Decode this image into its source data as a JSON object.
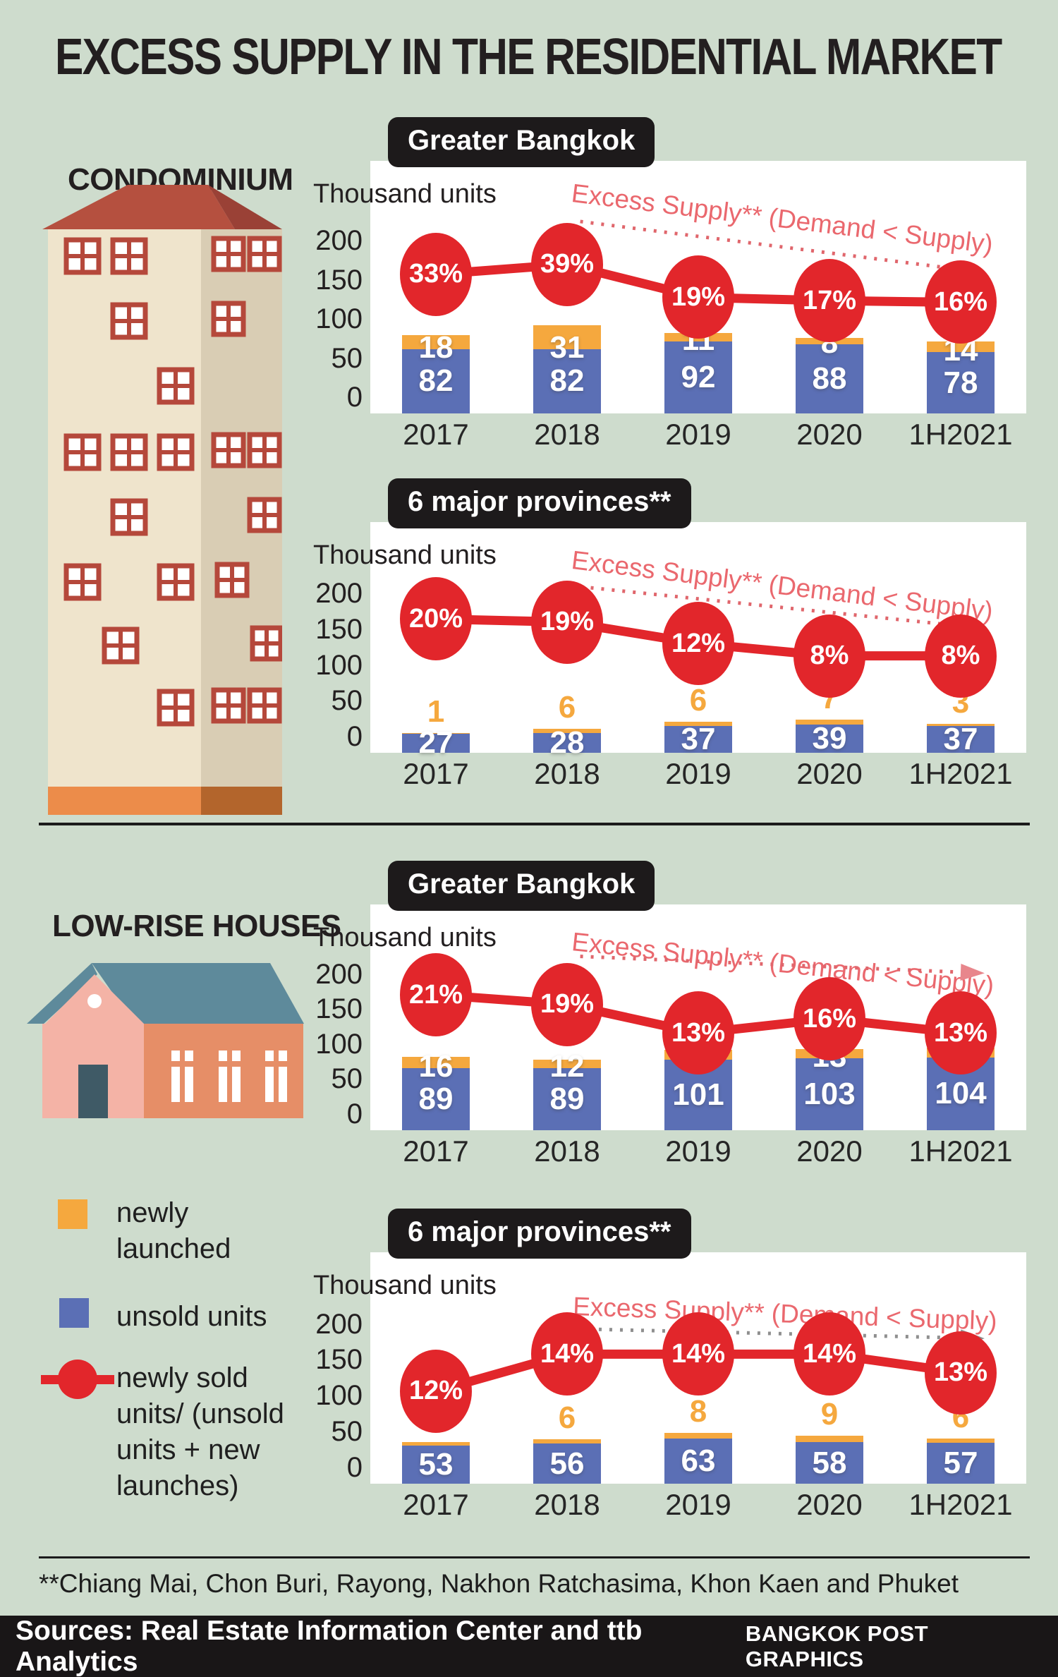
{
  "title": "EXCESS SUPPLY IN THE RESIDENTIAL MARKET",
  "colors": {
    "background": "#cedccd",
    "blue": "#5b6fb5",
    "orange": "#f5a83e",
    "red": "#e2262b",
    "pink_line": "#e0666c",
    "pink_arrowhead": "#e8868c",
    "pink_text": "#ea686e",
    "gray_line": "#8f8f8f",
    "badge_black": "#1d1a1b",
    "text_black": "#231f20"
  },
  "sections": {
    "condo_heading": "CONDOMINIUM",
    "lowrise_heading": "LOW-RISE HOUSES"
  },
  "legend": {
    "newly_launched": "newly launched",
    "unsold_units": "unsold units",
    "newly_sold": "newly sold units/ (unsold units + new launches)"
  },
  "footnote": "**Chiang Mai, Chon Buri, Rayong, Nakhon Ratchasima, Khon Kaen and Phuket",
  "footer": {
    "sources": "Sources: Real Estate Information Center and ttb Analytics",
    "credit": "BANGKOK POST GRAPHICS"
  },
  "chart_data": [
    {
      "type": "bar+line",
      "section": "CONDOMINIUM",
      "region_label": "Greater Bangkok",
      "axis_title": "Thousand units",
      "annotation": "Excess Supply** (Demand < Supply)",
      "categories": [
        "2017",
        "2018",
        "2019",
        "2020",
        "1H2021"
      ],
      "series": [
        {
          "name": "unsold units",
          "color": "blue",
          "values": [
            82,
            82,
            92,
            88,
            78
          ]
        },
        {
          "name": "newly launched",
          "color": "orange",
          "values": [
            18,
            31,
            11,
            8,
            14
          ]
        }
      ],
      "line": {
        "name": "newly sold units/(unsold units + new launches)",
        "unit": "%",
        "values": [
          33,
          39,
          19,
          17,
          16
        ]
      },
      "ylim": [
        0,
        200
      ],
      "yticks": [
        200,
        150,
        100,
        50,
        0
      ],
      "layout": {
        "orange_label": "inside",
        "line_band": [
          0.41,
          0.56
        ],
        "dotted": [
          0.32,
          0.24,
          0.9,
          0.43
        ],
        "annot_left": 0.31,
        "annot_top": 0.07,
        "annot_rotate": 7,
        "arrow": "pink"
      }
    },
    {
      "type": "bar+line",
      "section": "CONDOMINIUM",
      "region_label": "6 major provinces**",
      "axis_title": "Thousand units",
      "annotation": "Excess Supply** (Demand < Supply)",
      "categories": [
        "2017",
        "2018",
        "2019",
        "2020",
        "1H2021"
      ],
      "series": [
        {
          "name": "unsold units",
          "color": "blue",
          "values": [
            27,
            28,
            37,
            39,
            37
          ]
        },
        {
          "name": "newly launched",
          "color": "orange",
          "values": [
            1,
            6,
            6,
            7,
            3
          ]
        }
      ],
      "line": {
        "name": "newly sold units/(unsold units + new launches)",
        "unit": "%",
        "values": [
          20,
          19,
          12,
          8,
          8
        ]
      },
      "ylim": [
        0,
        200
      ],
      "yticks": [
        200,
        150,
        100,
        50,
        0
      ],
      "layout": {
        "orange_label": "above",
        "line_band": [
          0.42,
          0.58
        ],
        "dotted": [
          0.32,
          0.28,
          0.9,
          0.45
        ],
        "annot_left": 0.31,
        "annot_top": 0.1,
        "annot_rotate": 7,
        "arrow": "pink"
      }
    },
    {
      "type": "bar+line",
      "section": "LOW-RISE HOUSES",
      "region_label": "Greater Bangkok",
      "axis_title": "Thousand units",
      "annotation": "Excess Supply** (Demand < Supply)",
      "categories": [
        "2017",
        "2018",
        "2019",
        "2020",
        "1H2021"
      ],
      "series": [
        {
          "name": "unsold units",
          "color": "blue",
          "values": [
            89,
            89,
            101,
            103,
            104
          ]
        },
        {
          "name": "newly launched",
          "color": "orange",
          "values": [
            16,
            12,
            14,
            13,
            14
          ]
        }
      ],
      "line": {
        "name": "newly sold units/(unsold units + new launches)",
        "unit": "%",
        "values": [
          21,
          19,
          13,
          16,
          13
        ]
      },
      "ylim": [
        0,
        200
      ],
      "yticks": [
        200,
        150,
        100,
        50,
        0
      ],
      "layout": {
        "orange_label": "inside",
        "line_band": [
          0.4,
          0.57
        ],
        "dotted": [
          0.32,
          0.23,
          0.9,
          0.3
        ],
        "annot_left": 0.31,
        "annot_top": 0.1,
        "annot_rotate": 6,
        "arrow": "pink"
      }
    },
    {
      "type": "bar+line",
      "section": "LOW-RISE HOUSES",
      "region_label": "6 major provinces**",
      "axis_title": "Thousand units",
      "annotation": "Excess Supply** (Demand < Supply)",
      "categories": [
        "2017",
        "2018",
        "2019",
        "2020",
        "1H2021"
      ],
      "series": [
        {
          "name": "unsold units",
          "color": "blue",
          "values": [
            53,
            56,
            63,
            58,
            57
          ]
        },
        {
          "name": "newly launched",
          "color": "orange",
          "values": [
            5,
            6,
            8,
            9,
            6
          ]
        }
      ],
      "line": {
        "name": "newly sold units/(unsold units + new launches)",
        "unit": "%",
        "values": [
          12,
          14,
          14,
          14,
          13
        ]
      },
      "ylim": [
        0,
        200
      ],
      "yticks": [
        200,
        150,
        100,
        50,
        0
      ],
      "layout": {
        "orange_label": "above",
        "line_band": [
          0.44,
          0.6
        ],
        "dotted": [
          0.3,
          0.33,
          0.9,
          0.37
        ],
        "annot_left": 0.31,
        "annot_top": 0.17,
        "annot_rotate": 2,
        "arrow": "gray"
      }
    }
  ]
}
